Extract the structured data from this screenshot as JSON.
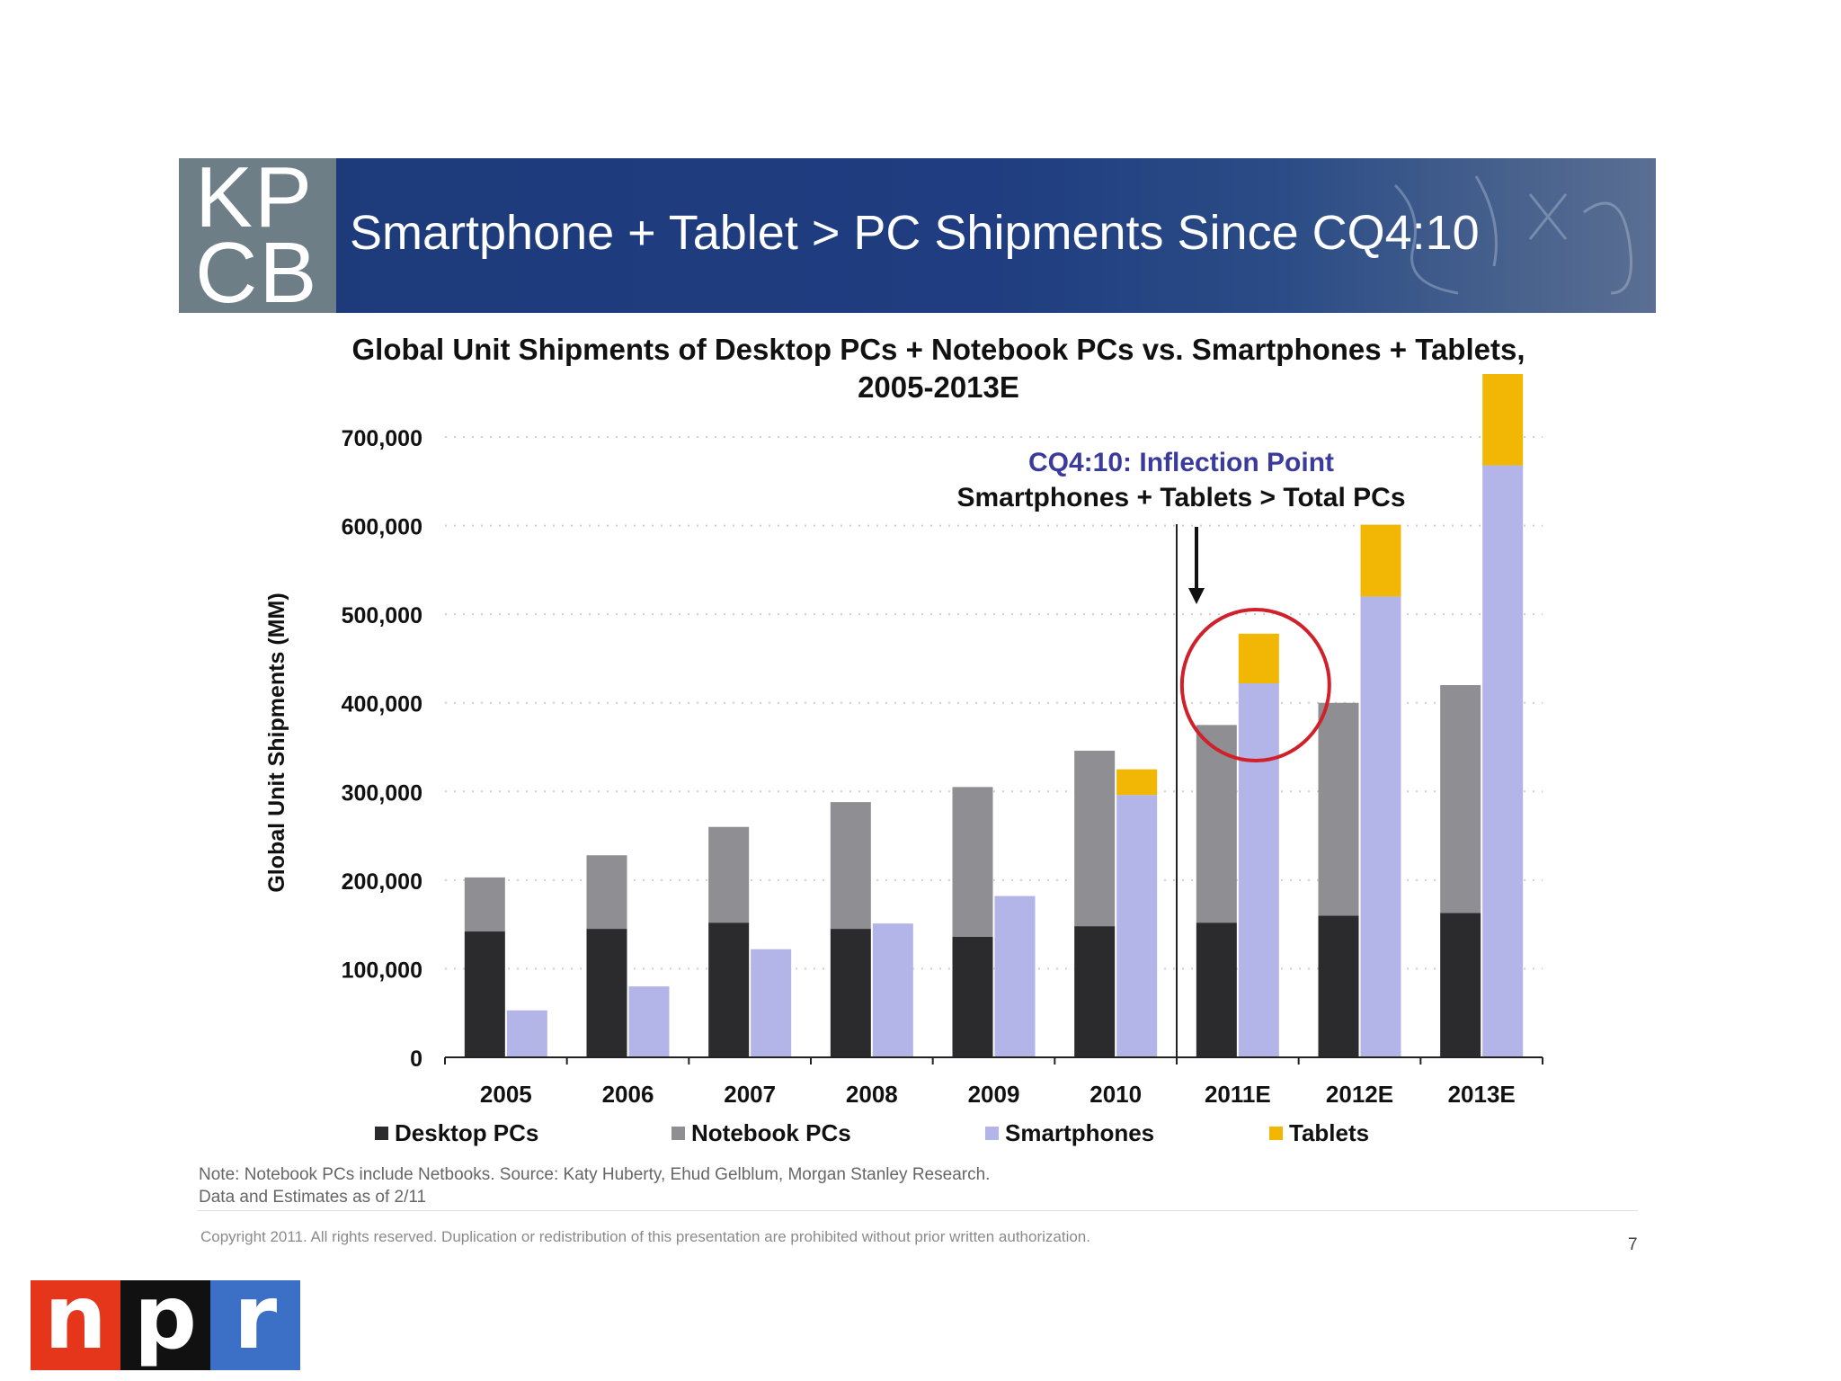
{
  "header": {
    "logo_line1": "KP",
    "logo_line2": "CB",
    "title": "Smartphone + Tablet > PC Shipments Since CQ4:10"
  },
  "chart_data": {
    "type": "bar",
    "stacked_groups": true,
    "title_line1": "Global Unit Shipments of Desktop PCs + Notebook PCs vs. Smartphones + Tablets,",
    "title_line2": "2005-2013E",
    "ylabel": "Global Unit Shipments (MM)",
    "xlabel": "",
    "ylim": [
      0,
      700000
    ],
    "yticks": [
      0,
      100000,
      200000,
      300000,
      400000,
      500000,
      600000,
      700000
    ],
    "ytick_labels": [
      "0",
      "100,000",
      "200,000",
      "300,000",
      "400,000",
      "500,000",
      "600,000",
      "700,000"
    ],
    "grid": "horizontal dotted",
    "categories": [
      "2005",
      "2006",
      "2007",
      "2008",
      "2009",
      "2010",
      "2011E",
      "2012E",
      "2013E"
    ],
    "series": [
      {
        "name": "Desktop PCs",
        "stack": "PCs",
        "color": "#2b2b2e",
        "values": [
          142000,
          145000,
          152000,
          145000,
          136000,
          148000,
          152000,
          160000,
          163000
        ]
      },
      {
        "name": "Notebook PCs",
        "stack": "PCs",
        "color": "#8f8f93",
        "values": [
          61000,
          83000,
          108000,
          143000,
          169000,
          198000,
          223000,
          240000,
          257000
        ]
      },
      {
        "name": "Smartphones",
        "stack": "Mobile",
        "color": "#b3b4e8",
        "values": [
          53000,
          80000,
          122000,
          151000,
          182000,
          296000,
          422000,
          520000,
          668000
        ]
      },
      {
        "name": "Tablets",
        "stack": "Mobile",
        "color": "#f2b705",
        "values": [
          0,
          0,
          0,
          0,
          0,
          29000,
          56000,
          81000,
          103000
        ]
      }
    ],
    "legend_position": "bottom",
    "annotations": {
      "line1": "CQ4:10: Inflection Point",
      "line2": "Smartphones + Tablets > Total PCs",
      "line1_color": "#3b3b9c",
      "circle_color": "#d0202a",
      "circled_category": "2011E"
    }
  },
  "footer": {
    "note_line1": "Note: Notebook PCs include Netbooks. Source: Katy Huberty, Ehud Gelblum, Morgan Stanley Research.",
    "note_line2": "Data and Estimates as of 2/11",
    "copyright": "Copyright 2011. All rights reserved. Duplication or redistribution of this presentation are prohibited without prior written authorization.",
    "page_number": "7"
  },
  "npr_logo": {
    "n": "n",
    "p": "p",
    "r": "r"
  }
}
